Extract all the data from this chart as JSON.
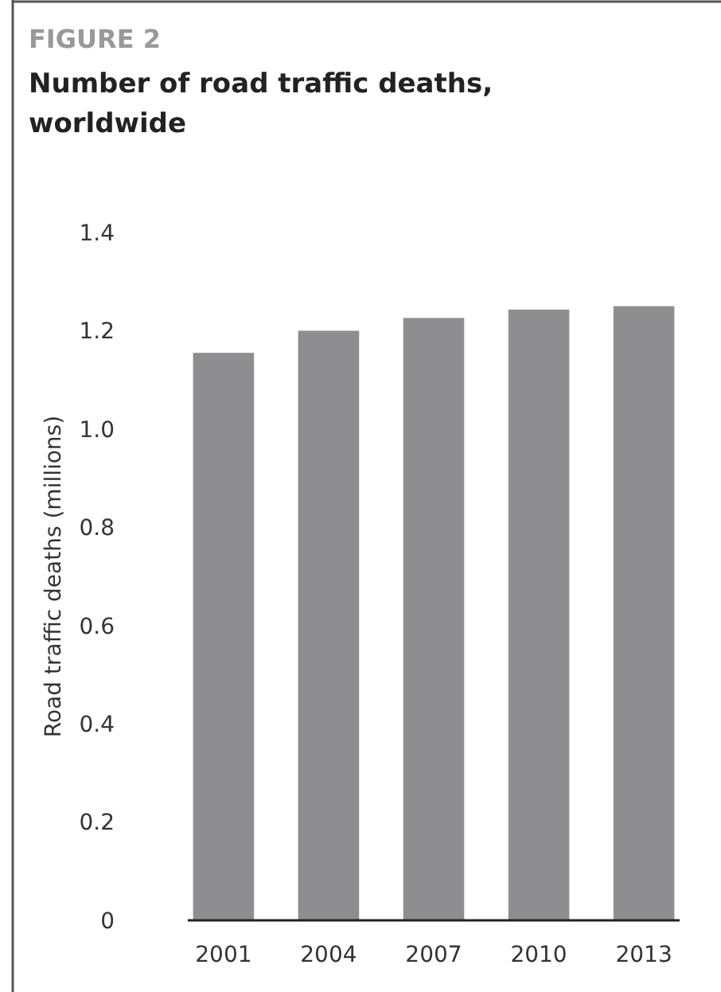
{
  "chart_data": {
    "type": "bar",
    "subtitle": "FIGURE 2",
    "title": "Number of road traffic deaths, worldwide",
    "ylabel": "Road traffic deaths (millions)",
    "categories": [
      "2001",
      "2004",
      "2007",
      "2010",
      "2013"
    ],
    "values": [
      1.155,
      1.2,
      1.226,
      1.243,
      1.25
    ],
    "color": "#8e8e90",
    "ylim": [
      0,
      1.4
    ],
    "yticks": [
      0,
      {
        "value": 0.2,
        "label": "0.2"
      },
      {
        "value": 0.4,
        "label": "0.4"
      },
      {
        "value": 0.6,
        "label": "0.6"
      },
      {
        "value": 0.8,
        "label": "0.8"
      },
      {
        "value": 1,
        "label": "1.0"
      },
      {
        "value": 1.2,
        "label": "1.2"
      },
      {
        "value": 1.4,
        "label": "1.4"
      }
    ],
    "grid": false
  }
}
